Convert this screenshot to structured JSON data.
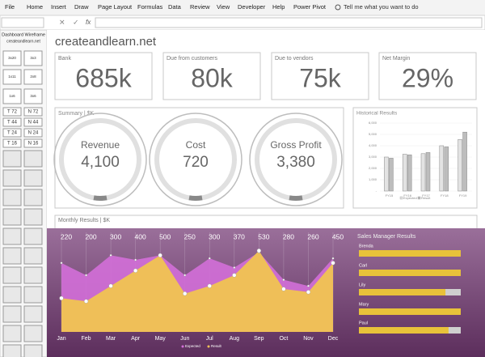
{
  "ribbon": {
    "tabs": [
      "File",
      "Home",
      "Insert",
      "Draw",
      "Page Layout",
      "Formulas",
      "Data",
      "Review",
      "View",
      "Developer",
      "Help",
      "Power Pivot"
    ],
    "search": "Tell me what you want to do"
  },
  "formula_bar": {
    "function_label": "fx"
  },
  "sidebar": {
    "title": "Dashboard Wireframe",
    "subtitle": "createandlearn.net",
    "tiles": [
      "3x20",
      "3x3",
      "1x11",
      "2x8",
      "1x6",
      "3x6",
      "T 72",
      "N 72",
      "T 44",
      "N 44",
      "T 24",
      "N 24",
      "T 16",
      "N 16"
    ]
  },
  "dashboard": {
    "title": "createandlearn.net",
    "kpis": [
      {
        "label": "Bank",
        "value": "685k"
      },
      {
        "label": "Due from customers",
        "value": "80k"
      },
      {
        "label": "Due to vendors",
        "value": "75k"
      },
      {
        "label": "Net Margin",
        "value": "29%"
      }
    ],
    "summary": {
      "title": "Summary | $K",
      "items": [
        {
          "label": "Revenue",
          "value": "4,100"
        },
        {
          "label": "Cost",
          "value": "720"
        },
        {
          "label": "Gross Profit",
          "value": "3,380"
        }
      ]
    },
    "historical": {
      "type": "bar",
      "title": "Historical Results",
      "categories": [
        "FY15",
        "FY16",
        "FY17",
        "FY18",
        "FY19"
      ],
      "series": [
        {
          "name": "Expected",
          "color": "#e3e3e3",
          "values": [
            3000,
            3250,
            3300,
            4000,
            4550
          ]
        },
        {
          "name": "Result",
          "color": "#bdbdbd",
          "values": [
            2900,
            3200,
            3400,
            3900,
            5200
          ]
        }
      ],
      "ylim": [
        0,
        6000
      ],
      "yticks": [
        {
          "value": 0,
          "label": "-"
        },
        {
          "value": 1000,
          "label": "1,000"
        },
        {
          "value": 2000,
          "label": "2,000"
        },
        {
          "value": 3000,
          "label": "3,000"
        },
        {
          "value": 4000,
          "label": "4,000"
        },
        {
          "value": 5000,
          "label": "5,000"
        },
        {
          "value": 6000,
          "label": "6,000"
        }
      ]
    },
    "monthly": {
      "type": "area",
      "title": "Monthly Results | $K",
      "categories": [
        "Jan",
        "Feb",
        "Mar",
        "Apr",
        "May",
        "Jun",
        "Jul",
        "Aug",
        "Sep",
        "Oct",
        "Nov",
        "Dec"
      ],
      "series": [
        {
          "name": "Expected",
          "color": "#d36fd8",
          "values": [
            450,
            370,
            500,
            470,
            500,
            370,
            480,
            420,
            520,
            340,
            300,
            480
          ]
        },
        {
          "name": "Result",
          "color": "#efbf58",
          "values": [
            220,
            200,
            300,
            400,
            500,
            250,
            300,
            370,
            530,
            280,
            260,
            450
          ]
        }
      ],
      "ylim": [
        0,
        650
      ]
    },
    "sales": {
      "type": "bar",
      "title": "Sales Manager Results",
      "categories": [
        "Brenda",
        "Carl",
        "Lily",
        "Mary",
        "Paul"
      ],
      "values": [
        100,
        100,
        85,
        100,
        88
      ],
      "xlim": [
        0,
        100
      ],
      "color": "#e8c23a"
    }
  }
}
